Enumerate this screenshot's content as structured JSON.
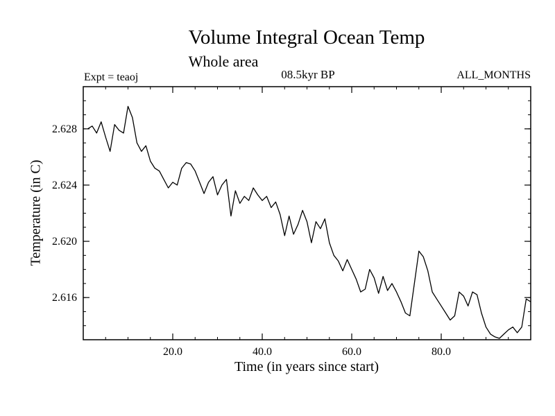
{
  "chart_data": {
    "type": "line",
    "title": "Volume Integral Ocean Temp",
    "subtitle": "Whole area",
    "annotations": {
      "expt": "Expt = teaoj",
      "time_bp": "08.5kyr BP",
      "months": "ALL_MONTHS"
    },
    "xlabel": "Time (in years since start)",
    "ylabel": "Temperature (in C)",
    "xlim": [
      0,
      100
    ],
    "ylim": [
      2.613,
      2.631
    ],
    "xticks": [
      20,
      40,
      60,
      80
    ],
    "xtick_labels": [
      "20.0",
      "40.0",
      "60.0",
      "80.0"
    ],
    "yticks": [
      2.616,
      2.62,
      2.624,
      2.628
    ],
    "ytick_labels": [
      "2.616",
      "2.620",
      "2.624",
      "2.628"
    ],
    "x_minor_step": 5,
    "y_minor_step": 0.001,
    "grid": false,
    "legend": null,
    "line_color": "#000000",
    "x": [
      1,
      2,
      3,
      4,
      5,
      6,
      7,
      8,
      9,
      10,
      11,
      12,
      13,
      14,
      15,
      16,
      17,
      18,
      19,
      20,
      21,
      22,
      23,
      24,
      25,
      26,
      27,
      28,
      29,
      30,
      31,
      32,
      33,
      34,
      35,
      36,
      37,
      38,
      39,
      40,
      41,
      42,
      43,
      44,
      45,
      46,
      47,
      48,
      49,
      50,
      51,
      52,
      53,
      54,
      55,
      56,
      57,
      58,
      59,
      60,
      61,
      62,
      63,
      64,
      65,
      66,
      67,
      68,
      69,
      70,
      71,
      72,
      73,
      74,
      75,
      76,
      77,
      78,
      79,
      80,
      81,
      82,
      83,
      84,
      85,
      86,
      87,
      88,
      89,
      90,
      91,
      92,
      93,
      94,
      95,
      96,
      97,
      98,
      99,
      100
    ],
    "y": [
      2.628,
      2.6282,
      2.6277,
      2.6285,
      2.6274,
      2.6264,
      2.6283,
      2.6279,
      2.6277,
      2.6296,
      2.6288,
      2.627,
      2.6264,
      2.6268,
      2.6257,
      2.6252,
      2.625,
      2.6244,
      2.6238,
      2.6242,
      2.624,
      2.6252,
      2.6256,
      2.6255,
      2.625,
      2.6242,
      2.6234,
      2.6242,
      2.6246,
      2.6233,
      2.624,
      2.6244,
      2.6218,
      2.6236,
      2.6227,
      2.6232,
      2.6229,
      2.6238,
      2.6233,
      2.6229,
      2.6232,
      2.6224,
      2.6228,
      2.6219,
      2.6204,
      2.6218,
      2.6205,
      2.6212,
      2.6222,
      2.6214,
      2.6199,
      2.6214,
      2.6209,
      2.6216,
      2.6199,
      2.619,
      2.6186,
      2.6179,
      2.6187,
      2.618,
      2.6173,
      2.6164,
      2.6166,
      2.618,
      2.6174,
      2.6163,
      2.6175,
      2.6165,
      2.617,
      2.6164,
      2.6157,
      2.6149,
      2.6147,
      2.617,
      2.6193,
      2.6189,
      2.6179,
      2.6164,
      2.6159,
      2.6154,
      2.6149,
      2.6144,
      2.6147,
      2.6164,
      2.6161,
      2.6154,
      2.6164,
      2.6162,
      2.6149,
      2.6139,
      2.6134,
      2.6132,
      2.6131,
      2.6134,
      2.6137,
      2.6139,
      2.6135,
      2.6139,
      2.6159,
      2.6157
    ]
  }
}
